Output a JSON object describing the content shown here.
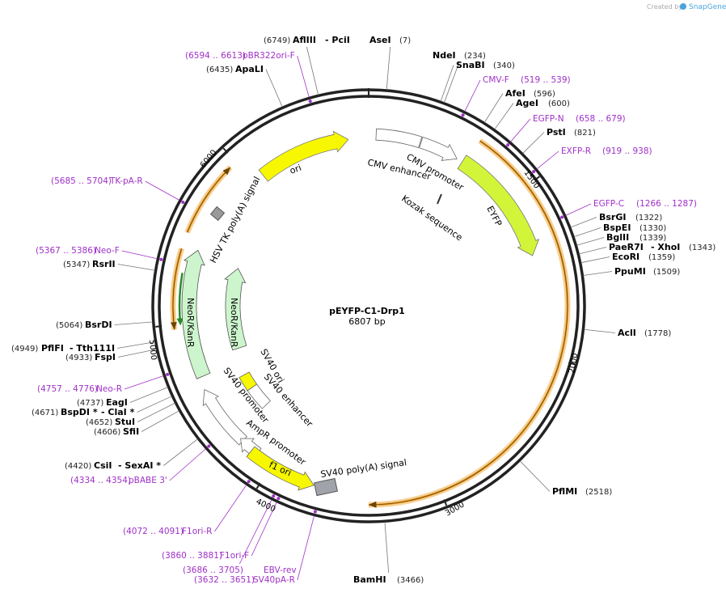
{
  "credit": {
    "prefix": "Created by",
    "brand": "SnapGene"
  },
  "plasmid": {
    "name": "pEYFP-C1-Drp1",
    "length": "6807 bp"
  },
  "ring_ticks": [
    "1500",
    "2000",
    "3000",
    "4000",
    "5000",
    "6000"
  ],
  "enzymes": [
    {
      "parts": [
        "(6749)",
        "AflIII",
        "- PciI"
      ]
    },
    {
      "parts": [
        "AseI",
        "(7)"
      ]
    },
    {
      "parts": [
        "(6435)",
        "ApaLI"
      ]
    },
    {
      "parts": [
        "NdeI",
        "(234)"
      ]
    },
    {
      "parts": [
        "SnaBI",
        "(340)"
      ]
    },
    {
      "parts": [
        "AfeI",
        "(596)"
      ]
    },
    {
      "parts": [
        "AgeI",
        "(600)"
      ]
    },
    {
      "parts": [
        "PstI",
        "(821)"
      ]
    },
    {
      "parts": [
        "BsrGI",
        "(1322)"
      ]
    },
    {
      "parts": [
        "BspEI",
        "(1330)"
      ]
    },
    {
      "parts": [
        "BglII",
        "(1339)"
      ]
    },
    {
      "parts": [
        "PaeR7I",
        "- XhoI",
        "(1343)"
      ]
    },
    {
      "parts": [
        "EcoRI",
        "(1359)"
      ]
    },
    {
      "parts": [
        "PpuMI",
        "(1509)"
      ]
    },
    {
      "parts": [
        "AclI",
        "(1778)"
      ]
    },
    {
      "parts": [
        "PflMI",
        "(2518)"
      ]
    },
    {
      "parts": [
        "BamHI",
        "(3466)"
      ]
    },
    {
      "parts": [
        "(4420)",
        "CsiI",
        "- SexAI *"
      ]
    },
    {
      "parts": [
        "(4606)",
        "SfiI"
      ]
    },
    {
      "parts": [
        "(4652)",
        "StuI"
      ]
    },
    {
      "parts": [
        "(4671)",
        "BspDI *",
        "- ClaI *"
      ]
    },
    {
      "parts": [
        "(4737)",
        "EagI"
      ]
    },
    {
      "parts": [
        "(4933)",
        "FspI"
      ]
    },
    {
      "parts": [
        "(4949)",
        "PflFI",
        "- Tth111I"
      ]
    },
    {
      "parts": [
        "(5064)",
        "BsrDI"
      ]
    },
    {
      "parts": [
        "(5347)",
        "RsrII"
      ]
    }
  ],
  "primers": [
    {
      "parts": [
        "(6594 .. 6613)",
        "pBR322ori-F"
      ]
    },
    {
      "parts": [
        "CMV-F",
        "(519 .. 539)"
      ]
    },
    {
      "parts": [
        "EGFP-N",
        "(658 .. 679)"
      ]
    },
    {
      "parts": [
        "EXFP-R",
        "(919 .. 938)"
      ]
    },
    {
      "parts": [
        "EGFP-C",
        "(1266 .. 1287)"
      ]
    },
    {
      "parts": [
        "(3632 .. 3651)",
        "SV40pA-R"
      ]
    },
    {
      "parts": [
        "(3686 .. 3705)",
        "EBV-rev"
      ]
    },
    {
      "parts": [
        "(3860 .. 3881)",
        "F1ori-F"
      ]
    },
    {
      "parts": [
        "(4072 .. 4091)",
        "F1ori-R"
      ]
    },
    {
      "parts": [
        "(4334 .. 4354)",
        "pBABE 3'"
      ]
    },
    {
      "parts": [
        "(4757 .. 4776)",
        "Neo-R"
      ]
    },
    {
      "parts": [
        "(5367 .. 5386)",
        "Neo-F"
      ]
    },
    {
      "parts": [
        "(5685 .. 5704)",
        "TK-pA-R"
      ]
    }
  ],
  "features": [
    "ori",
    "CMV enhancer",
    "CMV promoter",
    "Kozak sequence",
    "EYFP",
    "HSV TK poly(A) signal",
    "NeoR/KanR",
    "NeoR/KanR",
    "SV40 ori",
    "SV40 enhancer",
    "SV40 promoter",
    "AmpR promoter",
    "f1 ori",
    "SV40 poly(A) signal"
  ]
}
